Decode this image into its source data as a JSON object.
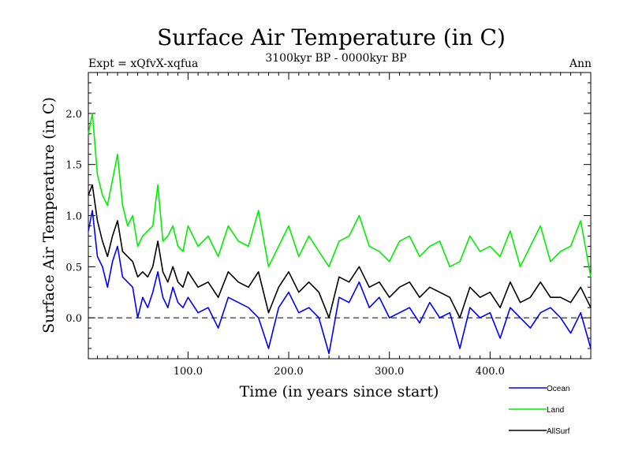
{
  "chart_data": {
    "type": "line",
    "title": "Surface Air Temperature (in C)",
    "subtitle": "3100kyr BP - 0000kyr BP",
    "left_label": "Expt = xQfvX-xqfua",
    "right_label": "Ann",
    "xlabel": "Time (in years since start)",
    "ylabel": "Surface Air Temperature (in C)",
    "xlim": [
      1,
      500
    ],
    "ylim": [
      -0.4,
      2.4
    ],
    "x_ticks": [
      100,
      200,
      300,
      400
    ],
    "x_tick_labels": [
      "100.0",
      "200.0",
      "300.0",
      "400.0"
    ],
    "y_ticks": [
      0,
      0.5,
      1.0,
      1.5,
      2.0
    ],
    "y_tick_labels": [
      "0.0",
      "0.5",
      "1.0",
      "1.5",
      "2.0"
    ],
    "reference_line": 0.0,
    "legend_position": "bottom-right",
    "series": [
      {
        "name": "Ocean",
        "color": "#0000ff",
        "x": [
          1,
          5,
          10,
          15,
          20,
          25,
          30,
          35,
          40,
          45,
          50,
          55,
          60,
          65,
          70,
          75,
          80,
          85,
          90,
          95,
          100,
          110,
          120,
          130,
          140,
          150,
          160,
          170,
          180,
          190,
          200,
          210,
          220,
          230,
          240,
          250,
          260,
          270,
          280,
          290,
          300,
          310,
          320,
          330,
          340,
          350,
          360,
          370,
          380,
          390,
          400,
          410,
          420,
          430,
          440,
          450,
          460,
          470,
          480,
          490,
          500
        ],
        "values": [
          0.85,
          1.05,
          0.6,
          0.5,
          0.3,
          0.55,
          0.7,
          0.4,
          0.35,
          0.3,
          0.0,
          0.2,
          0.1,
          0.25,
          0.45,
          0.2,
          0.1,
          0.3,
          0.15,
          0.1,
          0.2,
          0.05,
          0.1,
          -0.1,
          0.2,
          0.15,
          0.1,
          0.0,
          -0.3,
          0.1,
          0.25,
          0.05,
          0.1,
          0.0,
          -0.35,
          0.2,
          0.15,
          0.35,
          0.1,
          0.2,
          0.0,
          0.05,
          0.1,
          -0.05,
          0.15,
          0.0,
          0.05,
          -0.3,
          0.1,
          0.0,
          0.05,
          -0.2,
          0.1,
          0.0,
          -0.1,
          0.05,
          0.1,
          0.0,
          -0.15,
          0.05,
          -0.3
        ]
      },
      {
        "name": "Land",
        "color": "#00ee00",
        "x": [
          1,
          5,
          10,
          15,
          20,
          25,
          30,
          35,
          40,
          45,
          50,
          55,
          60,
          65,
          70,
          75,
          80,
          85,
          90,
          95,
          100,
          110,
          120,
          130,
          140,
          150,
          160,
          170,
          180,
          190,
          200,
          210,
          220,
          230,
          240,
          250,
          260,
          270,
          280,
          290,
          300,
          310,
          320,
          330,
          340,
          350,
          360,
          370,
          380,
          390,
          400,
          410,
          420,
          430,
          440,
          450,
          460,
          470,
          480,
          490,
          500
        ],
        "values": [
          1.8,
          2.0,
          1.4,
          1.2,
          1.1,
          1.35,
          1.6,
          1.1,
          0.9,
          1.0,
          0.7,
          0.8,
          0.85,
          0.9,
          1.3,
          0.75,
          0.8,
          0.9,
          0.7,
          0.65,
          0.9,
          0.7,
          0.8,
          0.6,
          0.9,
          0.75,
          0.7,
          1.05,
          0.5,
          0.7,
          0.9,
          0.6,
          0.8,
          0.65,
          0.5,
          0.75,
          0.8,
          1.0,
          0.7,
          0.65,
          0.55,
          0.75,
          0.8,
          0.6,
          0.7,
          0.75,
          0.5,
          0.55,
          0.8,
          0.65,
          0.7,
          0.6,
          0.85,
          0.5,
          0.7,
          0.9,
          0.55,
          0.65,
          0.7,
          0.95,
          0.4
        ]
      },
      {
        "name": "AllSurf",
        "color": "#000000",
        "x": [
          1,
          5,
          10,
          15,
          20,
          25,
          30,
          35,
          40,
          45,
          50,
          55,
          60,
          65,
          70,
          75,
          80,
          85,
          90,
          95,
          100,
          110,
          120,
          130,
          140,
          150,
          160,
          170,
          180,
          190,
          200,
          210,
          220,
          230,
          240,
          250,
          260,
          270,
          280,
          290,
          300,
          310,
          320,
          330,
          340,
          350,
          360,
          370,
          380,
          390,
          400,
          410,
          420,
          430,
          440,
          450,
          460,
          470,
          480,
          490,
          500
        ],
        "values": [
          1.2,
          1.3,
          0.95,
          0.75,
          0.6,
          0.8,
          0.95,
          0.65,
          0.6,
          0.55,
          0.4,
          0.45,
          0.4,
          0.5,
          0.75,
          0.45,
          0.35,
          0.5,
          0.35,
          0.3,
          0.45,
          0.3,
          0.35,
          0.2,
          0.45,
          0.35,
          0.3,
          0.45,
          0.05,
          0.3,
          0.45,
          0.25,
          0.35,
          0.25,
          0.0,
          0.4,
          0.35,
          0.5,
          0.3,
          0.35,
          0.2,
          0.3,
          0.35,
          0.2,
          0.3,
          0.25,
          0.2,
          0.0,
          0.3,
          0.2,
          0.25,
          0.1,
          0.35,
          0.15,
          0.2,
          0.35,
          0.2,
          0.2,
          0.15,
          0.3,
          0.1
        ]
      }
    ]
  }
}
